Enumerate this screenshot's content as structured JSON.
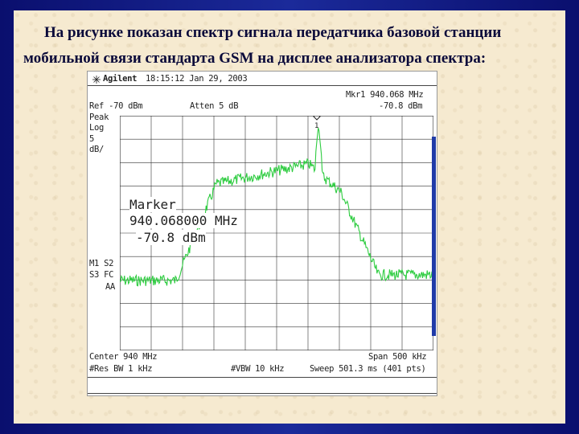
{
  "caption": {
    "line1": "На рисунке показан спектр сигнала передатчика базовой станции",
    "line2": "мобильной связи стандарта GSM на дисплее анализатора спектра:"
  },
  "analyzer": {
    "brand": "Agilent",
    "datetime": "18:15:12  Jan 29, 2003",
    "ref_level": "Ref -70 dBm",
    "atten": "Atten 5 dB",
    "marker_line": "Mkr1  940.068 MHz",
    "marker_level": "-70.8 dBm",
    "left_labels": [
      "Peak",
      "Log",
      "5",
      "dB/"
    ],
    "mode_labels": [
      "M1  S2",
      "S3  FC",
      "AA"
    ],
    "marker_box": [
      "Marker",
      "940.068000 MHz",
      "-70.8 dBm"
    ],
    "center": "Center 940 MHz",
    "span": "Span 500 kHz",
    "res_bw": "#Res BW 1 kHz",
    "vbw": "#VBW 10 kHz",
    "sweep": "Sweep 501.3 ms (401 pts)",
    "marker_number": "1",
    "trace_color": "#2ecc40"
  }
}
